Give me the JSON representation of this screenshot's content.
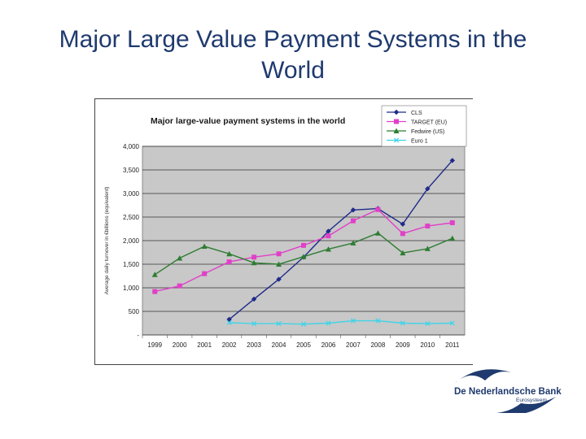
{
  "slide": {
    "title": "Major Large Value Payment Systems in the World"
  },
  "logo": {
    "name": "De Nederlandsche Bank",
    "sub": "Eurosysteem"
  },
  "chart_data": {
    "type": "line",
    "title": "Major large-value payment systems in the world",
    "ylabel": "Average daily turnover in €billions (equivalent)",
    "xlabel": "",
    "categories": [
      "1999",
      "2000",
      "2001",
      "2002",
      "2003",
      "2004",
      "2005",
      "2006",
      "2007",
      "2008",
      "2009",
      "2010",
      "2011"
    ],
    "ylim": [
      0,
      4000
    ],
    "yticks": [
      0,
      500,
      1000,
      1500,
      2000,
      2500,
      3000,
      3500,
      4000
    ],
    "ytick_labels": [
      "-",
      "500",
      "1,000",
      "1,500",
      "2,000",
      "2,500",
      "3,000",
      "3,500",
      "4,000"
    ],
    "grid": true,
    "legend_position": "top-right",
    "series": [
      {
        "name": "CLS",
        "color": "#1f2a8a",
        "marker": "diamond",
        "values": [
          null,
          null,
          null,
          330,
          760,
          1180,
          1650,
          2200,
          2650,
          2680,
          2350,
          3100,
          3700
        ]
      },
      {
        "name": "TARGET (EU)",
        "color": "#e040c8",
        "marker": "square",
        "values": [
          920,
          1040,
          1300,
          1550,
          1650,
          1720,
          1900,
          2100,
          2420,
          2660,
          2150,
          2310,
          2380
        ]
      },
      {
        "name": "Fedwire (US)",
        "color": "#2e7d32",
        "marker": "triangle",
        "values": [
          1280,
          1630,
          1880,
          1720,
          1530,
          1500,
          1660,
          1820,
          1950,
          2160,
          1740,
          1830,
          2050
        ]
      },
      {
        "name": "Euro 1",
        "color": "#40d4e8",
        "marker": "x",
        "values": [
          null,
          null,
          null,
          260,
          240,
          240,
          230,
          250,
          300,
          300,
          250,
          240,
          250
        ]
      }
    ]
  }
}
